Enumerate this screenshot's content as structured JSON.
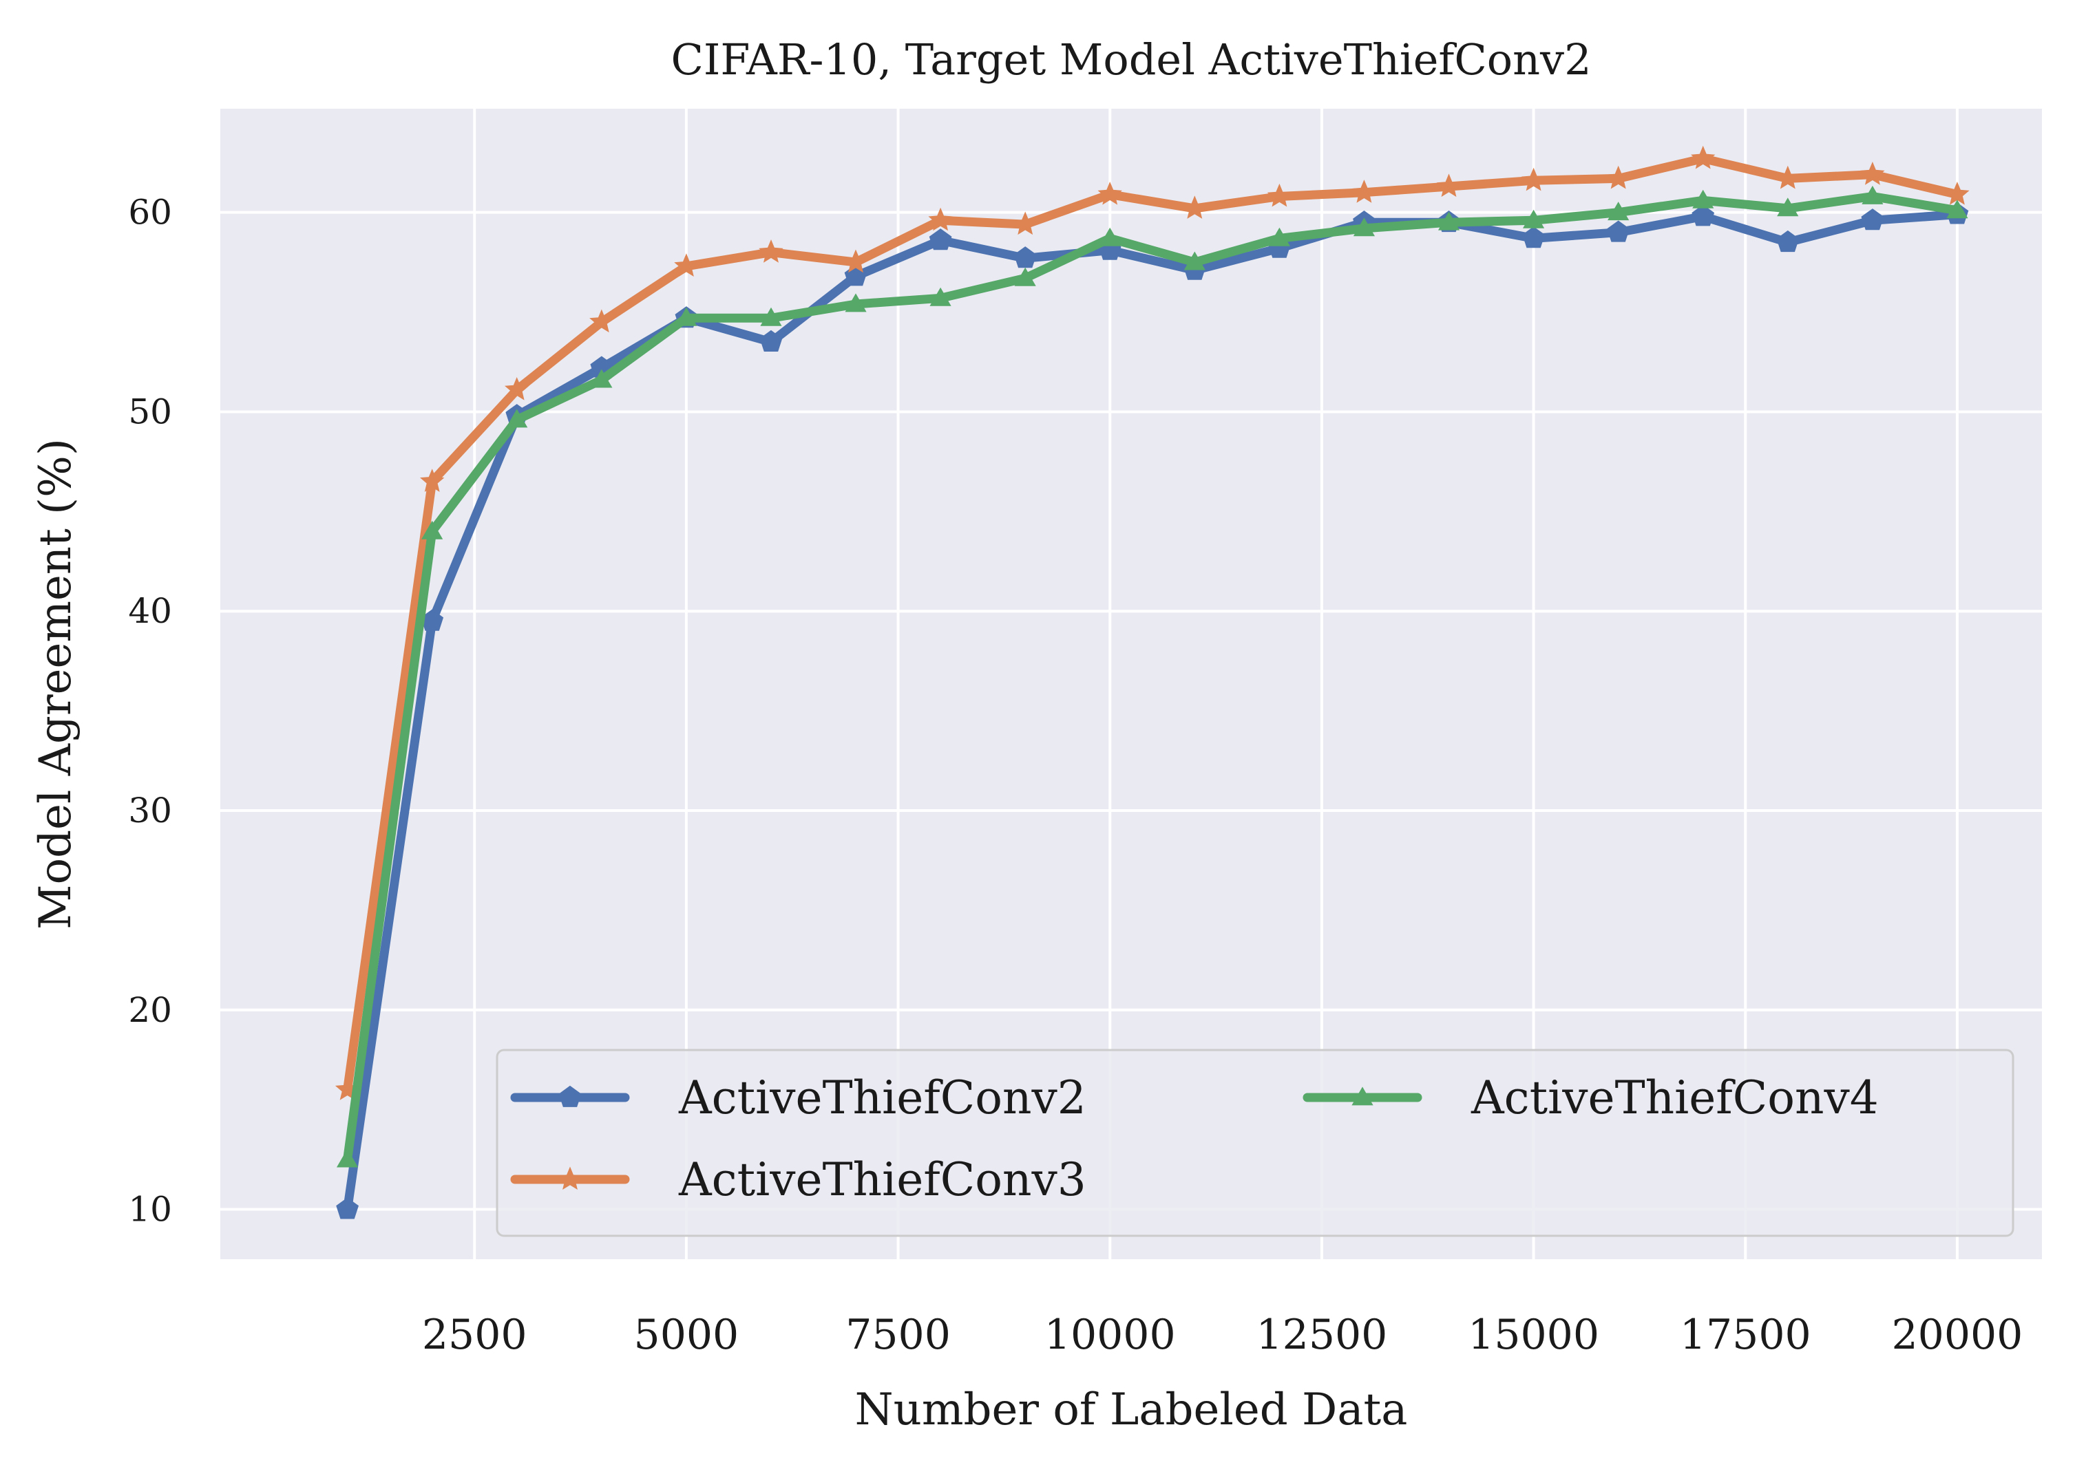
{
  "chart_data": {
    "type": "line",
    "title": "CIFAR-10, Target Model ActiveThiefConv2",
    "xlabel": "Number of Labeled Data",
    "ylabel": "Model Agreement (%)",
    "xlim": [
      -500,
      21000
    ],
    "ylim": [
      7.5,
      65.2
    ],
    "xticks": [
      2500,
      5000,
      7500,
      10000,
      12500,
      15000,
      17500,
      20000
    ],
    "yticks": [
      10,
      20,
      30,
      40,
      50,
      60
    ],
    "grid": true,
    "legend_position": "lower-right",
    "legend_columns": 2,
    "x": [
      1000,
      2000,
      3000,
      4000,
      5000,
      6000,
      7000,
      8000,
      9000,
      10000,
      11000,
      12000,
      13000,
      14000,
      15000,
      16000,
      17000,
      18000,
      19000,
      20000
    ],
    "series": [
      {
        "name": "ActiveThiefConv2",
        "color": "#4c72b0",
        "marker": "pentagon",
        "values": [
          10.0,
          39.5,
          49.8,
          52.2,
          54.7,
          53.5,
          56.8,
          58.6,
          57.7,
          58.1,
          57.1,
          58.2,
          59.5,
          59.5,
          58.7,
          59.0,
          59.8,
          58.5,
          59.6,
          59.9
        ]
      },
      {
        "name": "ActiveThiefConv3",
        "color": "#dd8452",
        "marker": "star",
        "values": [
          16.0,
          46.5,
          51.1,
          54.5,
          57.3,
          58.0,
          57.5,
          59.6,
          59.4,
          60.9,
          60.2,
          60.8,
          61.0,
          61.3,
          61.6,
          61.7,
          62.7,
          61.7,
          61.9,
          60.9
        ]
      },
      {
        "name": "ActiveThiefConv4",
        "color": "#55a868",
        "marker": "triangle",
        "values": [
          12.5,
          44.0,
          49.6,
          51.6,
          54.7,
          54.7,
          55.4,
          55.7,
          56.7,
          58.7,
          57.5,
          58.7,
          59.2,
          59.5,
          59.6,
          60.0,
          60.6,
          60.2,
          60.8,
          60.1
        ]
      }
    ]
  }
}
